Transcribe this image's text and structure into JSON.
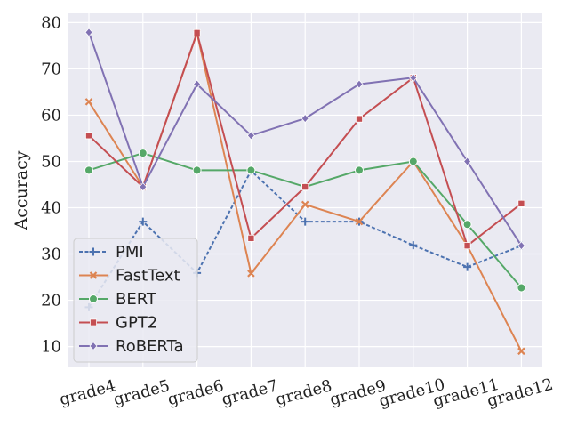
{
  "chart_data": {
    "type": "line",
    "title": "",
    "xlabel": "",
    "ylabel": "Accuracy",
    "ylim": [
      5.5,
      82
    ],
    "yticks": [
      10,
      20,
      30,
      40,
      50,
      60,
      70,
      80
    ],
    "grid": true,
    "legend_position": "bottom-left",
    "categories": [
      "grade4",
      "grade5",
      "grade6",
      "grade7",
      "grade8",
      "grade9",
      "grade10",
      "grade11",
      "grade12"
    ],
    "series": [
      {
        "name": "PMI",
        "color": "#4C72B0",
        "marker": "plus",
        "dash": true,
        "values": [
          18.5,
          37.0,
          25.9,
          48.0,
          37.0,
          37.0,
          31.9,
          27.2,
          31.8
        ]
      },
      {
        "name": "FastText",
        "color": "#DD8452",
        "marker": "x",
        "dash": false,
        "values": [
          62.9,
          44.5,
          77.7,
          25.8,
          40.7,
          37.0,
          50.0,
          31.8,
          9.0
        ]
      },
      {
        "name": "BERT",
        "color": "#55A868",
        "marker": "circle",
        "dash": false,
        "values": [
          48.1,
          51.8,
          48.1,
          48.1,
          44.5,
          48.1,
          50.0,
          36.4,
          22.7
        ]
      },
      {
        "name": "GPT2",
        "color": "#C44E52",
        "marker": "square",
        "dash": false,
        "values": [
          55.6,
          44.5,
          77.8,
          33.4,
          44.5,
          59.2,
          68.1,
          31.8,
          40.9
        ]
      },
      {
        "name": "RoBERTa",
        "color": "#8172B3",
        "marker": "diamond",
        "dash": false,
        "values": [
          77.9,
          44.5,
          66.7,
          55.6,
          59.3,
          66.7,
          68.1,
          50.0,
          31.8
        ]
      }
    ]
  }
}
